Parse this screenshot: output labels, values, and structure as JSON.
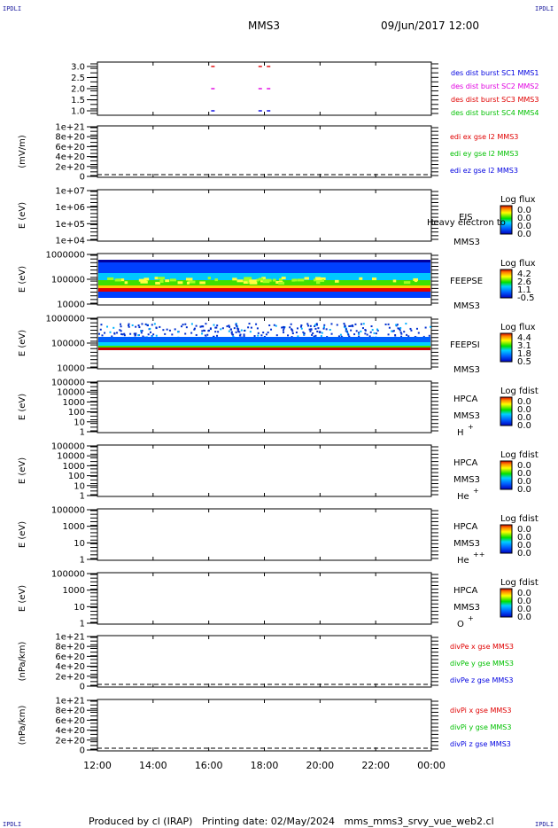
{
  "corners": {
    "tl": "IPDLI",
    "tr": "IPDLI",
    "bl": "IPDLI",
    "br": "IPDLI"
  },
  "header": {
    "spacecraft": "MMS3",
    "datetime": "09/Jun/2017 12:00"
  },
  "footer": {
    "produced_by": "Produced by  cl (IRAP)",
    "printing_date": "Printing date: 02/May/2024",
    "script": "mms_mms3_srvy_vue_web2.cl"
  },
  "colors": {
    "red": "#e00000",
    "magenta": "#e000e0",
    "blue": "#0000e0",
    "green": "#00c000"
  },
  "chart_data": [
    {
      "type": "scatter",
      "panel": "des dist burst",
      "ylim": [
        0.8,
        3.2
      ],
      "yticks": [
        "3.0",
        "2.5",
        "2.0",
        "1.5",
        "1.0"
      ],
      "tick_values": [
        3.0,
        2.5,
        2.0,
        1.5,
        1.0
      ],
      "series": [
        {
          "name": "des dist burst SC1 MMS1",
          "color": "#0000e0",
          "points": [
            [
              16.15,
              1
            ],
            [
              17.85,
              1
            ],
            [
              18.15,
              1
            ]
          ]
        },
        {
          "name": "des dist burst SC2 MMS2",
          "color": "#e000e0",
          "points": [
            [
              16.15,
              2
            ],
            [
              17.85,
              2
            ],
            [
              18.15,
              2
            ]
          ]
        },
        {
          "name": "des dist burst SC3 MMS3",
          "color": "#e00000",
          "points": [
            [
              16.15,
              3
            ],
            [
              17.85,
              3
            ],
            [
              18.15,
              3
            ]
          ]
        },
        {
          "name": "des dist burst SC4 MMS4",
          "color": "#00c000",
          "points": []
        }
      ]
    },
    {
      "type": "line",
      "panel": "edi e gse",
      "ylabel": "(mV/m)",
      "yticks": [
        "1e+21",
        "8e+20",
        "6e+20",
        "4e+20",
        "2e+20",
        "0"
      ],
      "series": [
        {
          "name": "edi ex gse l2 MMS3",
          "color": "#e00000"
        },
        {
          "name": "edi ey gse l2 MMS3",
          "color": "#00c000"
        },
        {
          "name": "edi ez gse l2 MMS3",
          "color": "#0000e0"
        }
      ]
    },
    {
      "type": "heatmap",
      "panel": "EIS",
      "ylabel": "E (eV)",
      "yticks": [
        "1e+07",
        "1e+06",
        "1e+05",
        "1e+04"
      ],
      "label": "EIS",
      "sc": "MMS3",
      "extra": "Heavy electron to",
      "colorbar_title": "Log flux",
      "colorbar_values": [
        "0.0",
        "0.0",
        "0.0",
        "0.0"
      ]
    },
    {
      "type": "heatmap",
      "panel": "FEEPSE",
      "ylabel": "E (eV)",
      "yticks": [
        "1000000",
        "100000",
        "10000"
      ],
      "label": "FEEPSE",
      "sc": "MMS3",
      "colorbar_title": "Log flux",
      "colorbar_values": [
        "4.2",
        "2.6",
        "1.1",
        "-0.5"
      ]
    },
    {
      "type": "heatmap",
      "panel": "FEEPSI",
      "ylabel": "E (eV)",
      "yticks": [
        "1000000",
        "100000",
        "10000"
      ],
      "label": "FEEPSI",
      "sc": "MMS3",
      "colorbar_title": "Log flux",
      "colorbar_values": [
        "4.4",
        "3.1",
        "1.8",
        "0.5"
      ]
    },
    {
      "type": "heatmap",
      "panel": "HPCA H+",
      "ylabel": "E (eV)",
      "yticks": [
        "100000",
        "10000",
        "1000",
        "100",
        "10",
        "1"
      ],
      "label": "HPCA",
      "sc": "MMS3",
      "species": "H",
      "charge": "+",
      "colorbar_title": "Log fdist",
      "colorbar_values": [
        "0.0",
        "0.0",
        "0.0",
        "0.0"
      ]
    },
    {
      "type": "heatmap",
      "panel": "HPCA He+",
      "ylabel": "E (eV)",
      "yticks": [
        "100000",
        "10000",
        "1000",
        "100",
        "10",
        "1"
      ],
      "label": "HPCA",
      "sc": "MMS3",
      "species": "He",
      "charge": "+",
      "colorbar_title": "Log fdist",
      "colorbar_values": [
        "0.0",
        "0.0",
        "0.0",
        "0.0"
      ]
    },
    {
      "type": "heatmap",
      "panel": "HPCA He++",
      "ylabel": "E (eV)",
      "yticks": [
        "100000",
        "1000",
        "10",
        "1"
      ],
      "label": "HPCA",
      "sc": "MMS3",
      "species": "He",
      "charge": "++",
      "colorbar_title": "Log fdist",
      "colorbar_values": [
        "0.0",
        "0.0",
        "0.0",
        "0.0"
      ]
    },
    {
      "type": "heatmap",
      "panel": "HPCA O+",
      "ylabel": "E (eV)",
      "yticks": [
        "100000",
        "1000",
        "10",
        "1"
      ],
      "label": "HPCA",
      "sc": "MMS3",
      "species": "O",
      "charge": "+",
      "colorbar_title": "Log fdist",
      "colorbar_values": [
        "0.0",
        "0.0",
        "0.0",
        "0.0"
      ]
    },
    {
      "type": "line",
      "panel": "divPe",
      "ylabel": "(nPa/km)",
      "yticks": [
        "1e+21",
        "8e+20",
        "6e+20",
        "4e+20",
        "2e+20",
        "0"
      ],
      "series": [
        {
          "name": "divPe x gse MMS3",
          "color": "#e00000"
        },
        {
          "name": "divPe y gse MMS3",
          "color": "#00c000"
        },
        {
          "name": "divPe z gse MMS3",
          "color": "#0000e0"
        }
      ]
    },
    {
      "type": "line",
      "panel": "divPi",
      "ylabel": "(nPa/km)",
      "yticks": [
        "1e+21",
        "8e+20",
        "6e+20",
        "4e+20",
        "2e+20",
        "0"
      ],
      "series": [
        {
          "name": "divPi x gse MMS3",
          "color": "#e00000"
        },
        {
          "name": "divPi y gse MMS3",
          "color": "#00c000"
        },
        {
          "name": "divPi z gse MMS3",
          "color": "#0000e0"
        }
      ]
    }
  ],
  "time_axis": {
    "labels": [
      "12:00",
      "14:00",
      "16:00",
      "18:00",
      "20:00",
      "22:00",
      "00:00"
    ],
    "range_hours": [
      12,
      24
    ]
  }
}
